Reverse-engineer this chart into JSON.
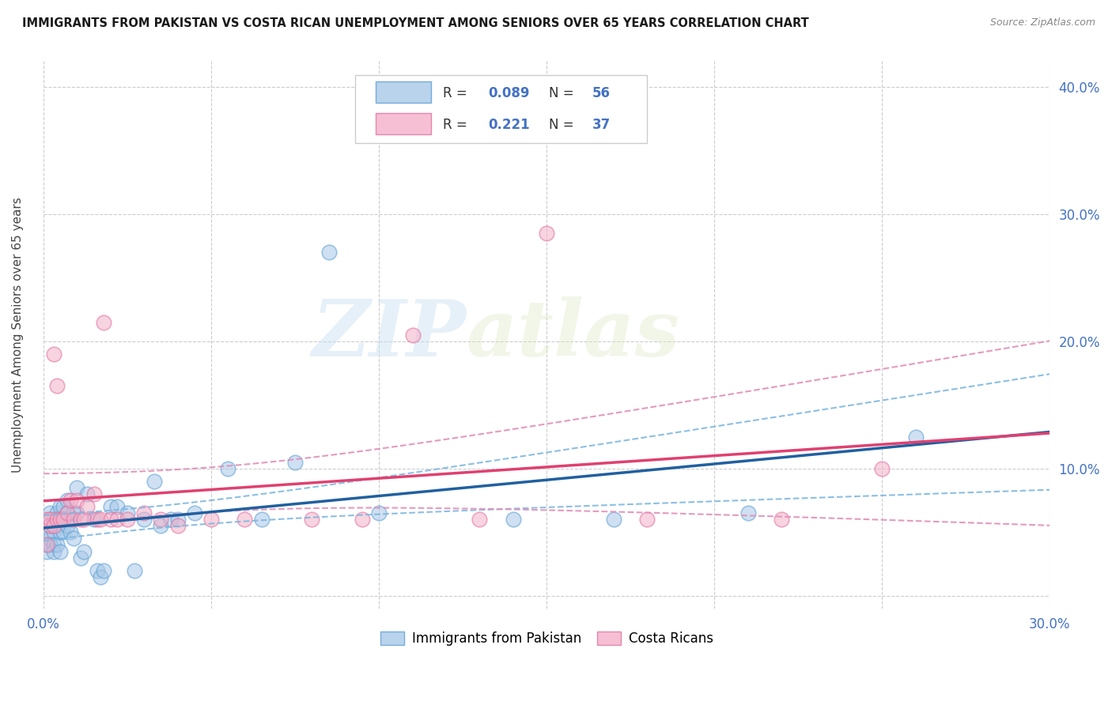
{
  "title": "IMMIGRANTS FROM PAKISTAN VS COSTA RICAN UNEMPLOYMENT AMONG SENIORS OVER 65 YEARS CORRELATION CHART",
  "source": "Source: ZipAtlas.com",
  "ylabel": "Unemployment Among Seniors over 65 years",
  "xlim": [
    0.0,
    0.3
  ],
  "ylim": [
    -0.01,
    0.42
  ],
  "xticks": [
    0.0,
    0.05,
    0.1,
    0.15,
    0.2,
    0.25,
    0.3
  ],
  "yticks": [
    0.0,
    0.1,
    0.2,
    0.3,
    0.4
  ],
  "watermark_zip": "ZIP",
  "watermark_atlas": "atlas",
  "blue_color": "#a8c8e8",
  "blue_edge_color": "#5a9fd4",
  "pink_color": "#f4b0c8",
  "pink_edge_color": "#e070a0",
  "blue_line_color": "#2060a0",
  "pink_line_color": "#e04070",
  "blue_ci_color": "#80b8e0",
  "pink_ci_color": "#e090b8",
  "R_blue": 0.089,
  "N_blue": 56,
  "R_pink": 0.221,
  "N_pink": 37,
  "blue_x": [
    0.001,
    0.001,
    0.001,
    0.002,
    0.002,
    0.002,
    0.002,
    0.003,
    0.003,
    0.003,
    0.003,
    0.004,
    0.004,
    0.004,
    0.005,
    0.005,
    0.005,
    0.005,
    0.006,
    0.006,
    0.006,
    0.007,
    0.007,
    0.007,
    0.008,
    0.008,
    0.009,
    0.009,
    0.01,
    0.01,
    0.011,
    0.012,
    0.013,
    0.015,
    0.016,
    0.017,
    0.018,
    0.02,
    0.022,
    0.025,
    0.027,
    0.03,
    0.033,
    0.035,
    0.038,
    0.04,
    0.045,
    0.055,
    0.065,
    0.075,
    0.085,
    0.1,
    0.14,
    0.17,
    0.21,
    0.26
  ],
  "blue_y": [
    0.05,
    0.04,
    0.035,
    0.065,
    0.055,
    0.045,
    0.04,
    0.06,
    0.05,
    0.04,
    0.035,
    0.065,
    0.055,
    0.04,
    0.07,
    0.06,
    0.05,
    0.035,
    0.07,
    0.06,
    0.05,
    0.075,
    0.065,
    0.055,
    0.06,
    0.05,
    0.065,
    0.045,
    0.085,
    0.065,
    0.03,
    0.035,
    0.08,
    0.06,
    0.02,
    0.015,
    0.02,
    0.07,
    0.07,
    0.065,
    0.02,
    0.06,
    0.09,
    0.055,
    0.06,
    0.06,
    0.065,
    0.1,
    0.06,
    0.105,
    0.27,
    0.065,
    0.06,
    0.06,
    0.065,
    0.125
  ],
  "pink_x": [
    0.001,
    0.001,
    0.002,
    0.002,
    0.003,
    0.003,
    0.004,
    0.004,
    0.005,
    0.006,
    0.007,
    0.008,
    0.009,
    0.01,
    0.011,
    0.012,
    0.013,
    0.015,
    0.016,
    0.017,
    0.018,
    0.02,
    0.022,
    0.025,
    0.03,
    0.035,
    0.04,
    0.05,
    0.06,
    0.08,
    0.095,
    0.11,
    0.13,
    0.15,
    0.18,
    0.22,
    0.25
  ],
  "pink_y": [
    0.04,
    0.06,
    0.055,
    0.06,
    0.055,
    0.19,
    0.06,
    0.165,
    0.06,
    0.06,
    0.065,
    0.075,
    0.06,
    0.075,
    0.06,
    0.06,
    0.07,
    0.08,
    0.06,
    0.06,
    0.215,
    0.06,
    0.06,
    0.06,
    0.065,
    0.06,
    0.055,
    0.06,
    0.06,
    0.06,
    0.06,
    0.205,
    0.06,
    0.285,
    0.06,
    0.06,
    0.1
  ]
}
